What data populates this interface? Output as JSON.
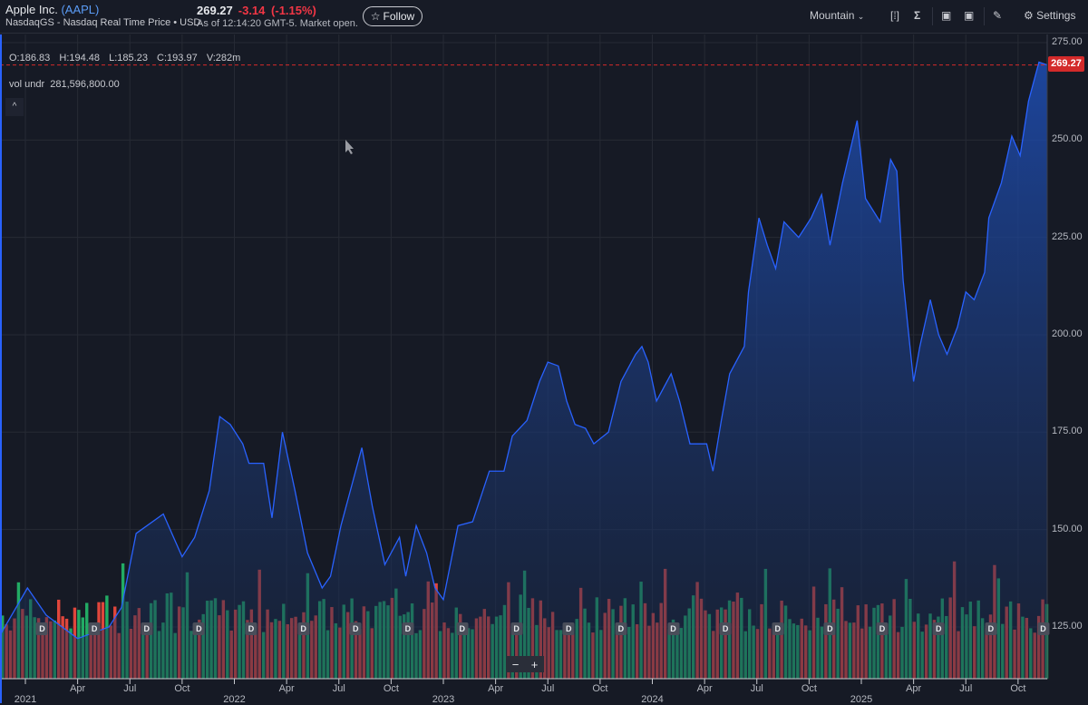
{
  "header": {
    "company": "Apple Inc.",
    "ticker": "(AAPL)",
    "exchange": "NasdaqGS - Nasdaq Real Time Price • USD",
    "price": "269.27",
    "change": "-3.14",
    "change_pct": "(-1.15%)",
    "as_of": "As of 12:14:20 GMT-5. Market open.",
    "follow_label": "Follow"
  },
  "toolbar": {
    "chart_type": "Mountain",
    "settings_label": "Settings",
    "icons": [
      "bracket-icon",
      "sigma-icon",
      "calendar-icon",
      "calendar-event-icon",
      "pencil-icon",
      "gear-icon"
    ]
  },
  "legend": {
    "ohlc": "O:186.83  H:194.48  L:185.23  C:193.97  V:282m",
    "volume_label": "vol undr",
    "volume_value": "281,596,800.00",
    "collapse": "^"
  },
  "zoom": {
    "minus": "−",
    "plus": "+"
  },
  "colors": {
    "line": "#2962ff",
    "up": "#22ab64",
    "down": "#e0463c",
    "last": "#d32a2a"
  },
  "chart_data": {
    "type": "area",
    "last_price": "269.27",
    "y_ticks": [
      "275.00",
      "250.00",
      "225.00",
      "200.00",
      "175.00",
      "150.00",
      "125.00"
    ],
    "ylim": [
      118,
      277
    ],
    "xlim": [
      2020.88,
      2025.9
    ],
    "x_ticks": [
      {
        "t": 2021.0,
        "label": "2021",
        "year": true
      },
      {
        "t": 2021.25,
        "label": "Apr"
      },
      {
        "t": 2021.5,
        "label": "Jul"
      },
      {
        "t": 2021.75,
        "label": "Oct"
      },
      {
        "t": 2022.0,
        "label": "2022",
        "year": true
      },
      {
        "t": 2022.25,
        "label": "Apr"
      },
      {
        "t": 2022.5,
        "label": "Jul"
      },
      {
        "t": 2022.75,
        "label": "Oct"
      },
      {
        "t": 2023.0,
        "label": "2023",
        "year": true
      },
      {
        "t": 2023.25,
        "label": "Apr"
      },
      {
        "t": 2023.5,
        "label": "Jul"
      },
      {
        "t": 2023.75,
        "label": "Oct"
      },
      {
        "t": 2024.0,
        "label": "2024",
        "year": true
      },
      {
        "t": 2024.25,
        "label": "Apr"
      },
      {
        "t": 2024.5,
        "label": "Jul"
      },
      {
        "t": 2024.75,
        "label": "Oct"
      },
      {
        "t": 2025.0,
        "label": "2025",
        "year": true
      },
      {
        "t": 2025.25,
        "label": "Apr"
      },
      {
        "t": 2025.5,
        "label": "Jul"
      },
      {
        "t": 2025.75,
        "label": "Oct"
      }
    ],
    "series": [
      [
        2020.88,
        123
      ],
      [
        2021.01,
        135
      ],
      [
        2021.1,
        128
      ],
      [
        2021.25,
        122
      ],
      [
        2021.4,
        125
      ],
      [
        2021.46,
        130
      ],
      [
        2021.53,
        149
      ],
      [
        2021.66,
        154
      ],
      [
        2021.75,
        143
      ],
      [
        2021.81,
        148
      ],
      [
        2021.88,
        160
      ],
      [
        2021.93,
        179
      ],
      [
        2021.98,
        177
      ],
      [
        2022.04,
        172
      ],
      [
        2022.07,
        167
      ],
      [
        2022.14,
        167
      ],
      [
        2022.18,
        153
      ],
      [
        2022.23,
        175
      ],
      [
        2022.29,
        160
      ],
      [
        2022.35,
        144
      ],
      [
        2022.42,
        135
      ],
      [
        2022.46,
        138
      ],
      [
        2022.51,
        151
      ],
      [
        2022.55,
        159
      ],
      [
        2022.61,
        171
      ],
      [
        2022.66,
        156
      ],
      [
        2022.72,
        141
      ],
      [
        2022.79,
        148
      ],
      [
        2022.82,
        138
      ],
      [
        2022.87,
        151
      ],
      [
        2022.92,
        144
      ],
      [
        2022.96,
        135
      ],
      [
        2023.0,
        132
      ],
      [
        2023.07,
        151
      ],
      [
        2023.14,
        152
      ],
      [
        2023.22,
        165
      ],
      [
        2023.29,
        165
      ],
      [
        2023.33,
        174
      ],
      [
        2023.4,
        178
      ],
      [
        2023.46,
        188
      ],
      [
        2023.5,
        193
      ],
      [
        2023.55,
        192
      ],
      [
        2023.59,
        183
      ],
      [
        2023.63,
        177
      ],
      [
        2023.68,
        176
      ],
      [
        2023.72,
        172
      ],
      [
        2023.79,
        175
      ],
      [
        2023.85,
        188
      ],
      [
        2023.92,
        195
      ],
      [
        2023.95,
        197
      ],
      [
        2023.98,
        193
      ],
      [
        2024.02,
        183
      ],
      [
        2024.09,
        190
      ],
      [
        2024.13,
        183
      ],
      [
        2024.18,
        172
      ],
      [
        2024.26,
        172
      ],
      [
        2024.29,
        165
      ],
      [
        2024.33,
        178
      ],
      [
        2024.37,
        190
      ],
      [
        2024.44,
        197
      ],
      [
        2024.46,
        211
      ],
      [
        2024.51,
        230
      ],
      [
        2024.55,
        223
      ],
      [
        2024.59,
        217
      ],
      [
        2024.63,
        229
      ],
      [
        2024.7,
        225
      ],
      [
        2024.76,
        230
      ],
      [
        2024.81,
        236
      ],
      [
        2024.85,
        223
      ],
      [
        2024.91,
        239
      ],
      [
        2024.98,
        255
      ],
      [
        2025.02,
        235
      ],
      [
        2025.09,
        229
      ],
      [
        2025.14,
        245
      ],
      [
        2025.17,
        242
      ],
      [
        2025.2,
        214
      ],
      [
        2025.25,
        188
      ],
      [
        2025.28,
        197
      ],
      [
        2025.33,
        209
      ],
      [
        2025.37,
        200
      ],
      [
        2025.41,
        195
      ],
      [
        2025.46,
        202
      ],
      [
        2025.5,
        211
      ],
      [
        2025.54,
        209
      ],
      [
        2025.59,
        216
      ],
      [
        2025.61,
        230
      ],
      [
        2025.67,
        239
      ],
      [
        2025.72,
        251
      ],
      [
        2025.76,
        246
      ],
      [
        2025.8,
        260
      ],
      [
        2025.85,
        270
      ],
      [
        2025.89,
        269.27
      ]
    ],
    "dividend_marker": "D",
    "dividends": [
      2021.08,
      2021.33,
      2021.58,
      2021.83,
      2022.08,
      2022.33,
      2022.58,
      2022.83,
      2023.09,
      2023.35,
      2023.6,
      2023.85,
      2024.1,
      2024.35,
      2024.6,
      2024.85,
      2025.1,
      2025.37,
      2025.62,
      2025.87
    ]
  }
}
